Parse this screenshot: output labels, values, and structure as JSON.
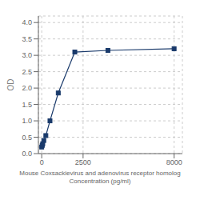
{
  "chart_data": {
    "type": "line",
    "xlabel": "Mouse Coxsackievirus and adenovirus receptor homolog\nConcentration (pg/ml)",
    "ylabel": "OD",
    "x": [
      0,
      31.25,
      62.5,
      125,
      250,
      500,
      1000,
      2000,
      4000,
      8000
    ],
    "series": [
      {
        "name": "OD",
        "color": "#1a3a6b",
        "marker": "square",
        "line_style": "solid",
        "values": [
          0.2,
          0.25,
          0.3,
          0.4,
          0.55,
          1.0,
          1.85,
          3.1,
          3.15,
          3.2
        ]
      }
    ],
    "xlim": [
      -200,
      8500
    ],
    "ylim": [
      0.0,
      4.2
    ],
    "xticks": [
      0,
      2500,
      8000
    ],
    "yticks": [
      {
        "value": 0,
        "label": "0.0"
      },
      0.5,
      {
        "value": 1.0,
        "label": "1.0"
      },
      1.5,
      {
        "value": 2.0,
        "label": "2.0"
      },
      2.5,
      {
        "value": 3.0,
        "label": "3.0"
      },
      3.5,
      {
        "value": 4.0,
        "label": "4.0"
      }
    ],
    "grid": true
  }
}
